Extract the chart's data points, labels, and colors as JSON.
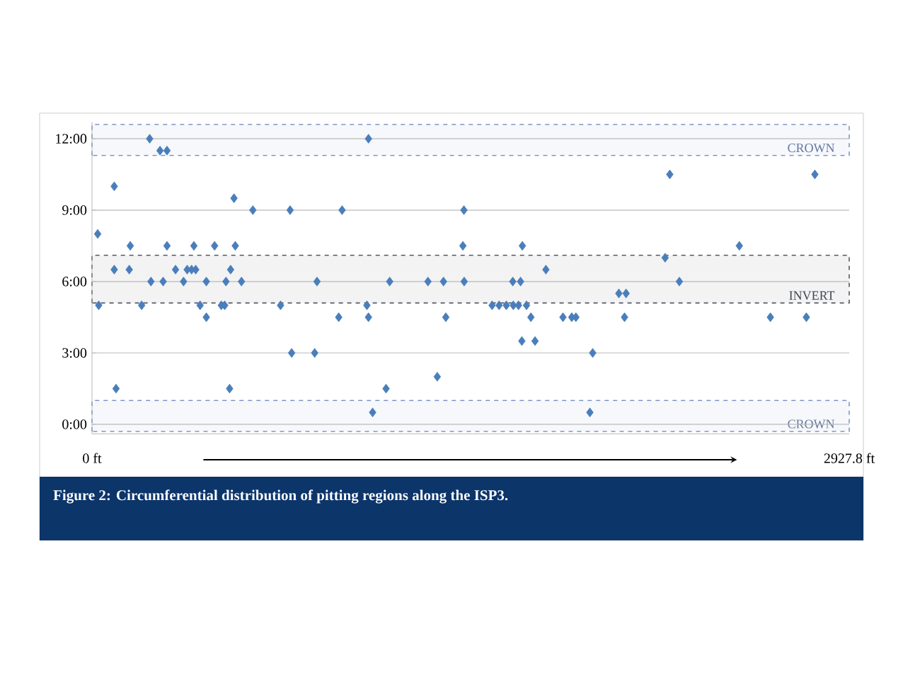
{
  "chart_data": {
    "type": "scatter",
    "color": "#4a7ebb",
    "marker": "diamond",
    "grid": "y",
    "tick_labels": "xy",
    "x": [
      22,
      26,
      86,
      86,
      93,
      148,
      144,
      192,
      223,
      228,
      263,
      290,
      275,
      290,
      323,
      354,
      368,
      385,
      401,
      394,
      418,
      442,
      442,
      474,
      500,
      513,
      518,
      536,
      532,
      549,
      554,
      578,
      622,
      729,
      766,
      772,
      861,
      870,
      967,
      954,
      1069,
      1063,
      1069,
      1085,
      1137,
      1151,
      1299,
      1335,
      1359,
      1368,
      1438,
      1434,
      1439,
      1547,
      1574,
      1602,
      1629,
      1649,
      1680,
      1627,
      1657,
      1664,
      1662,
      1697,
      1713,
      1755,
      1821,
      1855,
      1871,
      1936,
      1925,
      2037,
      2065,
      2059,
      2216,
      2234,
      2271,
      2503,
      2623,
      2762,
      2795
    ],
    "values": [
      8,
      5,
      10,
      6.5,
      1.5,
      7.5,
      6.5,
      5,
      12,
      6,
      11.5,
      11.5,
      6,
      7.5,
      6.5,
      6,
      6.5,
      6.5,
      6.5,
      7.5,
      5,
      6,
      4.5,
      7.5,
      5,
      5,
      6,
      6.5,
      1.5,
      9.5,
      7.5,
      6,
      9,
      5,
      9,
      3,
      3,
      6,
      9,
      4.5,
      12,
      5,
      4.5,
      0.5,
      1.5,
      6,
      6,
      2,
      6,
      4.5,
      9,
      7.5,
      6,
      5,
      5,
      5,
      5,
      5,
      5,
      6,
      6,
      7.5,
      3.5,
      4.5,
      3.5,
      6.5,
      4.5,
      4.5,
      4.5,
      3,
      0.5,
      5.5,
      5.5,
      4.5,
      7,
      10.5,
      6,
      7.5,
      4.5,
      4.5,
      10.5
    ],
    "xlim": [
      0,
      2927.8
    ],
    "xticks": [
      {
        "value": 0,
        "label": "0 ft"
      },
      {
        "value": 2927.8,
        "label": "2927.8 ft"
      }
    ],
    "ylim": [
      -0.4,
      12.7
    ],
    "yticks": [
      {
        "value": 0,
        "label": "0:00"
      },
      {
        "value": 3,
        "label": "3:00"
      },
      {
        "value": 6,
        "label": "6:00"
      },
      {
        "value": 9,
        "label": "9:00"
      },
      {
        "value": 12,
        "label": "12:00"
      }
    ],
    "bands": [
      {
        "axis": "y",
        "from": 11.3,
        "to": 12.6,
        "label": "CROWN",
        "color": "#7f96c8"
      },
      {
        "axis": "y",
        "from": 5.1,
        "to": 7.1,
        "label": "INVERT",
        "color": "#555a66"
      },
      {
        "axis": "y",
        "from": -0.3,
        "to": 1.0,
        "label": "CROWN",
        "color": "#7f96c8"
      }
    ],
    "annotations": [
      "Figure 2:  Circumferential distribution of pitting regions along the ISP3."
    ]
  }
}
